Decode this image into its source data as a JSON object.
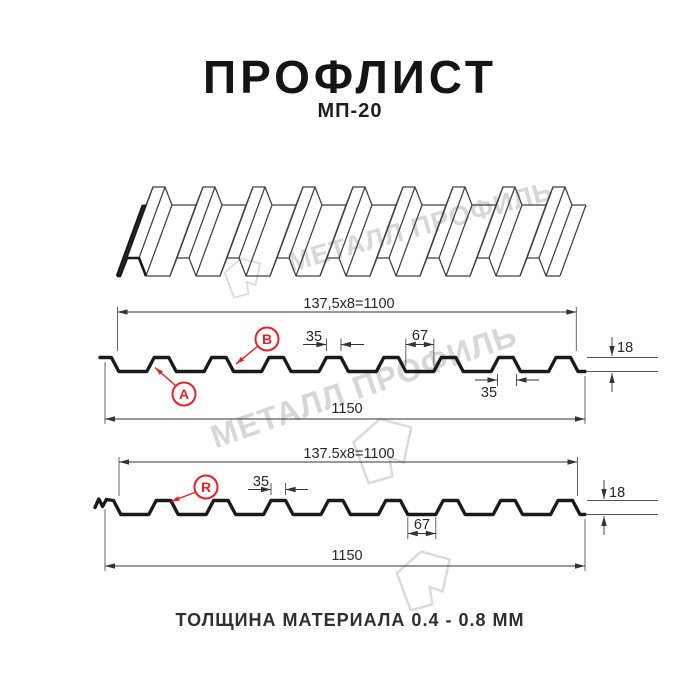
{
  "drawing": {
    "title": "ПРОФЛИСТ",
    "code": "МП-20",
    "watermark_text": "МЕТАЛЛ ПРОФИЛЬ",
    "thickness_note": "ТОЛЩИНА МАТЕРИАЛА 0.4 - 0.8 ММ"
  },
  "profile_front": {
    "coverage_width": "137,5x8=1100",
    "crest_top_width": "35",
    "trough_width": "67",
    "height": "18",
    "rib_bottom_width": "35",
    "full_width": "1150",
    "point_a": "A",
    "point_b": "B"
  },
  "profile_back": {
    "coverage_width": "137.5x8=1100",
    "crest_top_width": "35",
    "trough_width": "67",
    "height": "18",
    "full_width": "1150",
    "point_r": "R"
  },
  "colors": {
    "accent_red": "#ec1f26",
    "profile_line": "#1a1a1a",
    "dimension_line": "#333333",
    "watermark": "#d7d7d7"
  }
}
